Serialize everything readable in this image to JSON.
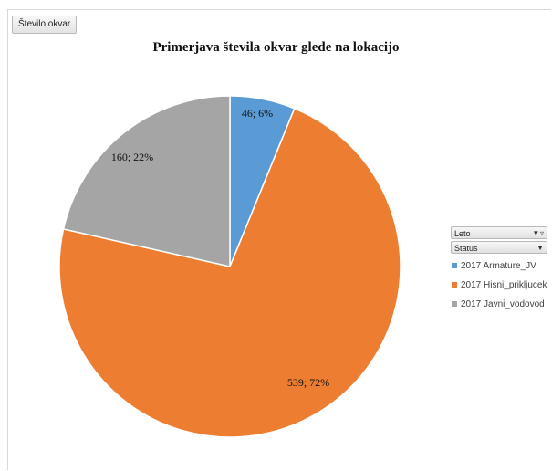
{
  "field_button_label": "Število okvar",
  "filters": [
    {
      "label": "Leto",
      "icon": "filter-dropdown-icon"
    },
    {
      "label": "Status",
      "icon": "dropdown-icon"
    }
  ],
  "chart_data": {
    "type": "pie",
    "title": "Primerjava števila okvar glede na lokacijo",
    "categories": [
      "2017 Armature_JV",
      "2017 Hisni_prikljucek",
      "2017 Javni_vodovod"
    ],
    "values": [
      46,
      539,
      160
    ],
    "percent_labels": [
      "6%",
      "72%",
      "22%"
    ],
    "data_labels": [
      "46; 6%",
      "539; 72%",
      "160; 22%"
    ],
    "colors": [
      "#5b9bd5",
      "#ed7d31",
      "#a5a5a5"
    ],
    "legend_position": "right"
  }
}
